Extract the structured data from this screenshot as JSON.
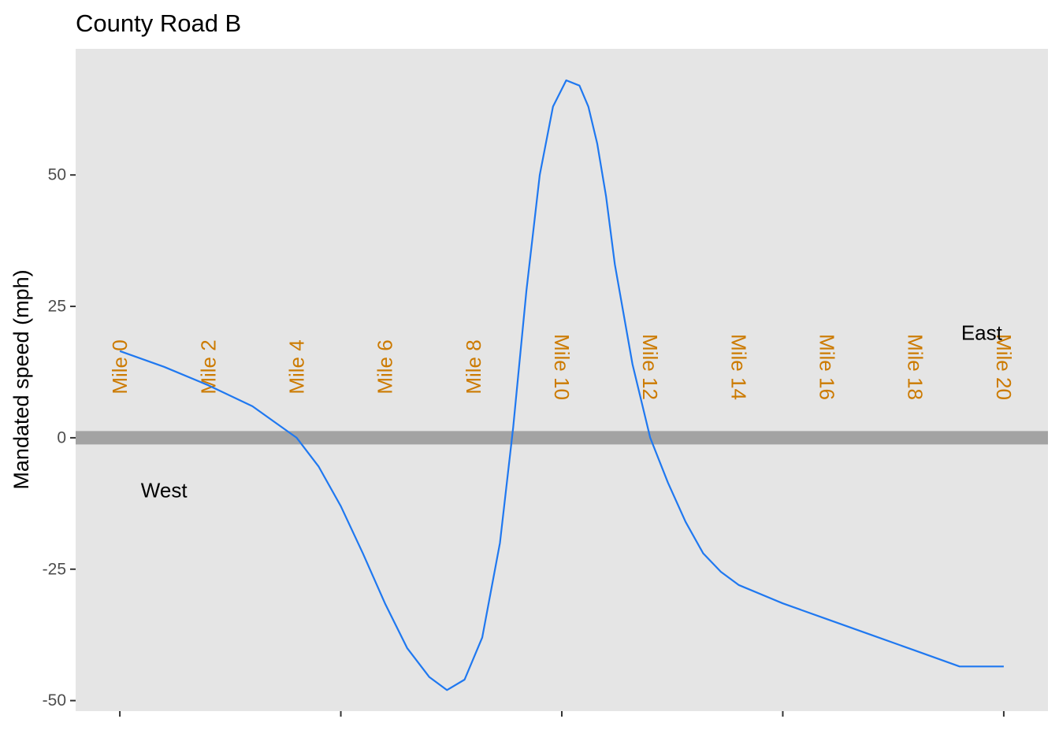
{
  "chart_data": {
    "type": "line",
    "title": "County Road B",
    "xlabel": "",
    "ylabel": "Mandated speed (mph)",
    "xlim": [
      -1,
      21
    ],
    "ylim": [
      -52,
      74
    ],
    "y_ticks": [
      {
        "value": -50,
        "label": "-50"
      },
      {
        "value": -25,
        "label": "-25"
      },
      {
        "value": 0,
        "label": "0"
      },
      {
        "value": 25,
        "label": "25"
      },
      {
        "value": 50,
        "label": "50"
      }
    ],
    "x_ticks": [
      0,
      5,
      10,
      15,
      20
    ],
    "grid": false,
    "panel_background": "#e5e5e5",
    "series": [
      {
        "color": "#1f78f0",
        "x": [
          0,
          1,
          2,
          3,
          3.5,
          4,
          4.5,
          5,
          5.5,
          6,
          6.5,
          7,
          7.4,
          7.8,
          8.2,
          8.6,
          8.9,
          9.2,
          9.5,
          9.8,
          10.1,
          10.4,
          10.6,
          10.8,
          11.0,
          11.2,
          11.6,
          12.0,
          12.4,
          12.8,
          13.2,
          13.6,
          14,
          15,
          16,
          17,
          18,
          19,
          20
        ],
        "y": [
          16.5,
          13.5,
          10,
          6,
          3,
          0,
          -5.5,
          -13,
          -22,
          -31.5,
          -40,
          -45.5,
          -48,
          -46,
          -38,
          -20,
          2,
          28,
          50,
          63,
          68,
          67,
          63,
          56,
          46,
          33,
          14,
          0,
          -8.5,
          -16,
          -22,
          -25.5,
          -28,
          -31.5,
          -34.5,
          -37.5,
          -40.5,
          -43.5,
          -43.5
        ]
      }
    ],
    "reference_line": {
      "y": 0,
      "color": "#a3a3a3"
    },
    "annotations": {
      "mile_labels": [
        "Mile 0",
        "Mile 2",
        "Mile 4",
        "Mile 6",
        "Mile 8",
        "Mile 10",
        "Mile 12",
        "Mile 14",
        "Mile 16",
        "Mile 18",
        "Mile 20"
      ],
      "mile_label_color": "#cc7a00",
      "west": {
        "text": "West",
        "x": 1,
        "y": -10
      },
      "east": {
        "text": "East",
        "x": 19.5,
        "y": 20
      }
    }
  }
}
